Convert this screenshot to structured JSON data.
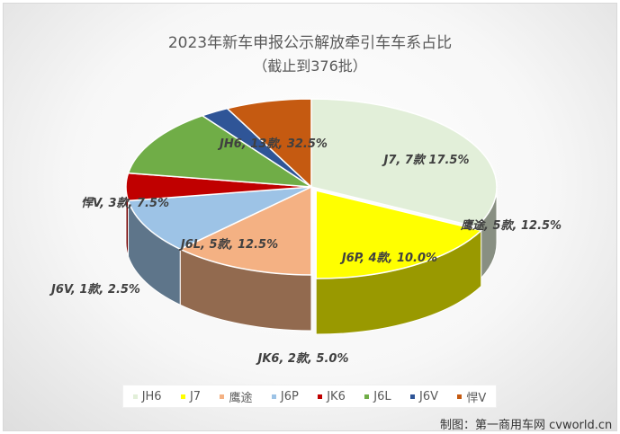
{
  "title": "2023年新车申报公示解放牵引车车系占比",
  "subtitle": "（截止到376批）",
  "credit": "制图：第一商用车网 cvworld.cn",
  "chart_data": {
    "type": "pie",
    "title": "2023年新车申报公示解放牵引车车系占比",
    "subtitle": "（截止到376批）",
    "slices": [
      {
        "name": "JH6",
        "count": 13,
        "percent": 32.5,
        "color": "#e2efd9",
        "label": "JH6, 13款, 32.5%"
      },
      {
        "name": "J7",
        "count": 7,
        "percent": 17.5,
        "color": "#ffff00",
        "label": "J7, 7款 17.5%"
      },
      {
        "name": "鹰途",
        "count": 5,
        "percent": 12.5,
        "color": "#f4b183",
        "label": "鹰途, 5款, 12.5%"
      },
      {
        "name": "J6P",
        "count": 4,
        "percent": 10.0,
        "color": "#9dc3e6",
        "label": "J6P, 4款, 10.0%"
      },
      {
        "name": "JK6",
        "count": 2,
        "percent": 5.0,
        "color": "#c00000",
        "label": "JK6, 2款, 5.0%"
      },
      {
        "name": "J6L",
        "count": 5,
        "percent": 12.5,
        "color": "#70ad47",
        "label": "J6L, 5款, 12.5%"
      },
      {
        "name": "J6V",
        "count": 1,
        "percent": 2.5,
        "color": "#2f5597",
        "label": "J6V, 1款, 2.5%"
      },
      {
        "name": "悍V",
        "count": 3,
        "percent": 7.5,
        "color": "#c55a11",
        "label": "悍V, 3款, 7.5%"
      }
    ],
    "legend_position": "bottom"
  }
}
